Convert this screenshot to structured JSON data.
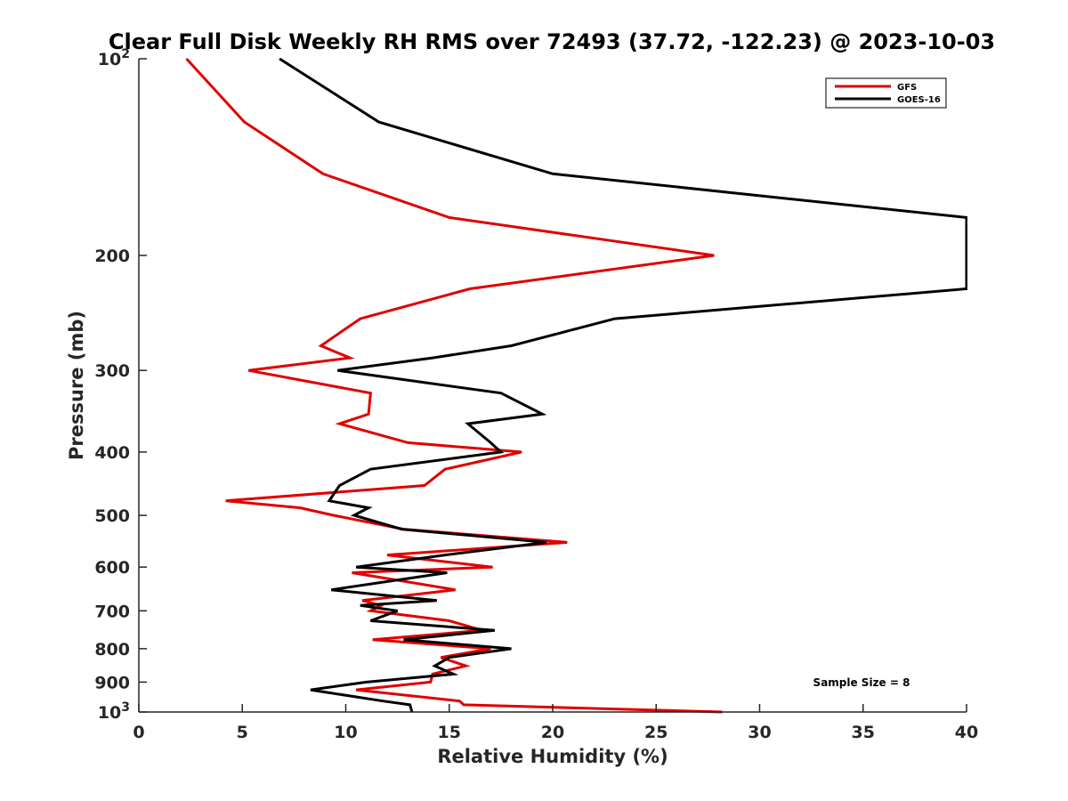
{
  "chart_data": {
    "type": "line",
    "title": "Clear Full Disk Weekly RH RMS over 72493 (37.72, -122.23) @ 2023-10-03",
    "xlabel": "Relative Humidity (%)",
    "ylabel": "Pressure (mb)",
    "xlim": [
      0,
      40
    ],
    "ylim": [
      100,
      1000
    ],
    "y_scale": "log",
    "y_reversed": true,
    "xticks": [
      0,
      5,
      10,
      15,
      20,
      25,
      30,
      35,
      40
    ],
    "xtick_labels": [
      "0",
      "5",
      "10",
      "15",
      "20",
      "25",
      "30",
      "35",
      "40"
    ],
    "yticks": [
      {
        "value": 100,
        "label": "10",
        "sup": "2"
      },
      {
        "value": 200,
        "label": "200",
        "sup": ""
      },
      {
        "value": 300,
        "label": "300",
        "sup": ""
      },
      {
        "value": 400,
        "label": "400",
        "sup": ""
      },
      {
        "value": 500,
        "label": "500",
        "sup": ""
      },
      {
        "value": 600,
        "label": "600",
        "sup": ""
      },
      {
        "value": 700,
        "label": "700",
        "sup": ""
      },
      {
        "value": 800,
        "label": "800",
        "sup": ""
      },
      {
        "value": 900,
        "label": "900",
        "sup": ""
      },
      {
        "value": 1000,
        "label": "10",
        "sup": "3"
      }
    ],
    "grid": false,
    "legend_position": "top-right",
    "annotation": "Sample Size = 8",
    "series": [
      {
        "name": "GFS",
        "color": "#e00000",
        "points": [
          [
            2.3,
            100
          ],
          [
            5.1,
            125
          ],
          [
            8.9,
            150
          ],
          [
            15.0,
            175
          ],
          [
            27.8,
            200
          ],
          [
            16.0,
            225
          ],
          [
            10.7,
            250
          ],
          [
            8.8,
            275
          ],
          [
            10.2,
            287
          ],
          [
            5.3,
            300
          ],
          [
            11.2,
            325
          ],
          [
            11.1,
            350
          ],
          [
            9.7,
            362
          ],
          [
            13.0,
            387
          ],
          [
            18.5,
            400
          ],
          [
            14.8,
            425
          ],
          [
            13.8,
            450
          ],
          [
            4.2,
            475
          ],
          [
            7.8,
            487
          ],
          [
            9.4,
            500
          ],
          [
            12.8,
            525
          ],
          [
            20.7,
            550
          ],
          [
            12.0,
            575
          ],
          [
            17.1,
            600
          ],
          [
            10.3,
            612
          ],
          [
            15.3,
            650
          ],
          [
            10.8,
            675
          ],
          [
            11.7,
            687
          ],
          [
            11.2,
            700
          ],
          [
            15.0,
            725
          ],
          [
            16.6,
            750
          ],
          [
            11.3,
            775
          ],
          [
            17.0,
            800
          ],
          [
            14.6,
            825
          ],
          [
            15.8,
            850
          ],
          [
            14.2,
            875
          ],
          [
            14.1,
            900
          ],
          [
            10.5,
            925
          ],
          [
            15.5,
            962
          ],
          [
            15.7,
            975
          ],
          [
            28.2,
            1000
          ]
        ]
      },
      {
        "name": "GOES-16",
        "color": "#000000",
        "points": [
          [
            6.8,
            100
          ],
          [
            11.6,
            125
          ],
          [
            20.0,
            150
          ],
          [
            40.0,
            175
          ],
          [
            40.0,
            225
          ],
          [
            23.0,
            250
          ],
          [
            18.0,
            275
          ],
          [
            14.2,
            287
          ],
          [
            9.6,
            300
          ],
          [
            17.5,
            325
          ],
          [
            19.5,
            350
          ],
          [
            15.9,
            362
          ],
          [
            17.0,
            387
          ],
          [
            17.5,
            400
          ],
          [
            11.2,
            425
          ],
          [
            9.7,
            450
          ],
          [
            9.2,
            475
          ],
          [
            11.1,
            487
          ],
          [
            10.4,
            500
          ],
          [
            12.7,
            525
          ],
          [
            19.7,
            550
          ],
          [
            14.8,
            575
          ],
          [
            10.5,
            600
          ],
          [
            14.9,
            612
          ],
          [
            9.3,
            650
          ],
          [
            14.4,
            675
          ],
          [
            10.7,
            687
          ],
          [
            12.5,
            700
          ],
          [
            11.2,
            725
          ],
          [
            17.2,
            750
          ],
          [
            12.8,
            775
          ],
          [
            18.0,
            800
          ],
          [
            15.0,
            825
          ],
          [
            14.3,
            850
          ],
          [
            15.2,
            875
          ],
          [
            11.0,
            900
          ],
          [
            8.3,
            925
          ],
          [
            11.8,
            962
          ],
          [
            13.1,
            975
          ],
          [
            13.2,
            1000
          ]
        ]
      }
    ]
  }
}
